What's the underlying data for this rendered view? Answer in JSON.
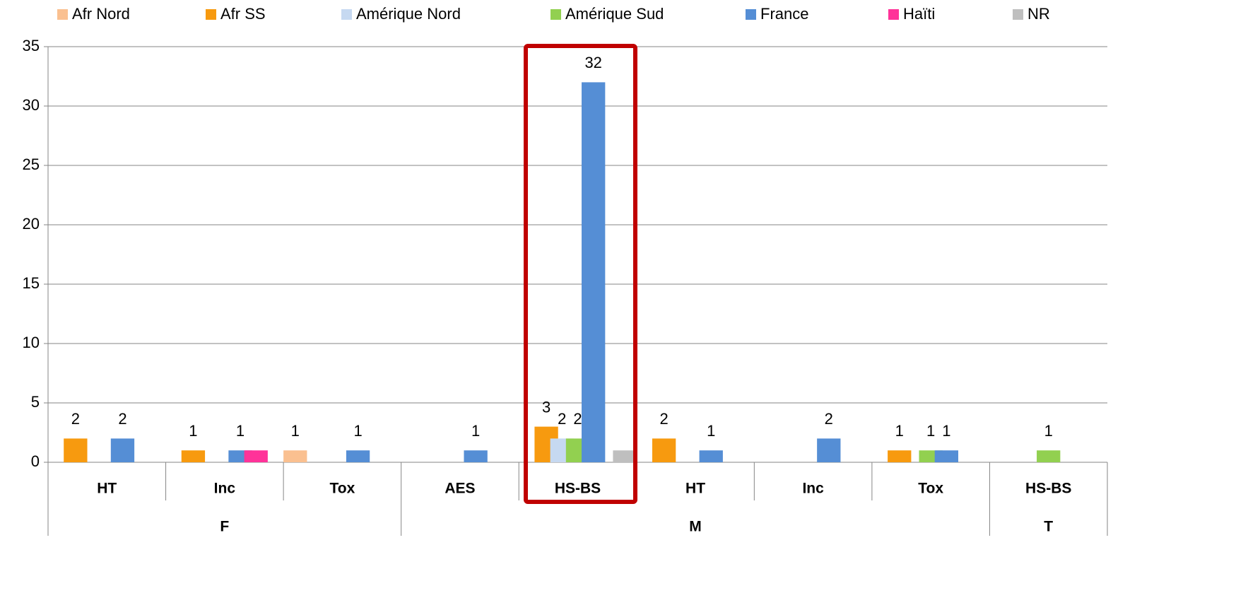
{
  "chart_data": {
    "type": "bar",
    "categories": [
      "HT",
      "Inc",
      "Tox",
      "AES",
      "HS-BS",
      "HT",
      "Inc",
      "Tox",
      "HS-BS"
    ],
    "category_groups": [
      "F",
      "F",
      "F",
      "M",
      "M",
      "M",
      "M",
      "M",
      "T"
    ],
    "series": [
      {
        "name": "Afr Nord",
        "color": "#fac090",
        "data_labels": true,
        "values": [
          null,
          null,
          1,
          null,
          null,
          null,
          null,
          null,
          null
        ]
      },
      {
        "name": "Afr SS",
        "color": "#f79a0f",
        "data_labels": true,
        "values": [
          2,
          1,
          null,
          null,
          3,
          2,
          null,
          1,
          null
        ]
      },
      {
        "name": "Amérique Nord",
        "color": "#c6d9f1",
        "data_labels": true,
        "values": [
          null,
          null,
          null,
          null,
          2,
          null,
          null,
          null,
          null
        ]
      },
      {
        "name": "Amérique Sud",
        "color": "#92d050",
        "data_labels": true,
        "values": [
          null,
          null,
          null,
          null,
          2,
          null,
          null,
          1,
          1
        ]
      },
      {
        "name": "France",
        "color": "#558ed5",
        "data_labels": true,
        "values": [
          2,
          1,
          1,
          1,
          32,
          1,
          2,
          1,
          null
        ]
      },
      {
        "name": "Haïti",
        "color": "#ff3399",
        "data_labels": false,
        "values": [
          null,
          1,
          null,
          null,
          null,
          null,
          null,
          null,
          null
        ]
      },
      {
        "name": "NR",
        "color": "#bfbfbf",
        "data_labels": false,
        "values": [
          null,
          null,
          null,
          null,
          1,
          null,
          null,
          null,
          null
        ]
      }
    ],
    "ylim": [
      0,
      35
    ],
    "yticks": [
      0,
      5,
      10,
      15,
      20,
      25,
      30,
      35
    ],
    "grid": true,
    "legend": "top"
  }
}
